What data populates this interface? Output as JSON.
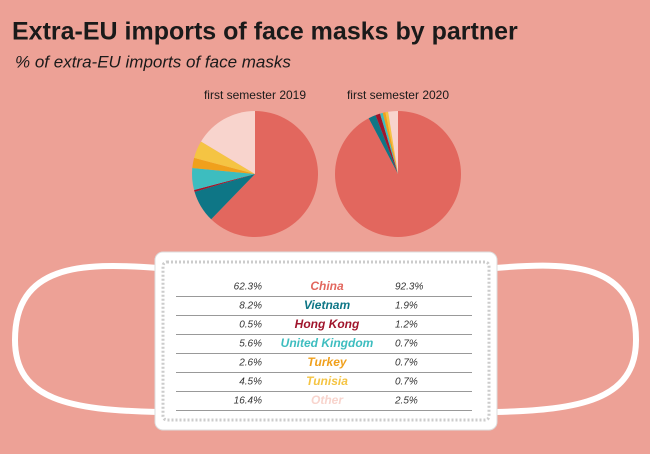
{
  "title": "Extra-EU imports of face masks by partner",
  "subtitle": "% of extra-EU imports of face masks",
  "chart_data": {
    "type": "pie",
    "categories": [
      "China",
      "Vietnam",
      "Hong Kong",
      "United Kingdom",
      "Turkey",
      "Tunisia",
      "Other"
    ],
    "colors": [
      "#e2675e",
      "#0e7686",
      "#a0152c",
      "#3dbdbf",
      "#f0a01c",
      "#f5c443",
      "#f8d4cd"
    ],
    "series": [
      {
        "name": "first semester 2019",
        "values": [
          62.3,
          8.2,
          0.5,
          5.6,
          2.6,
          4.5,
          16.4
        ],
        "value_labels": [
          "62.3%",
          "8.2%",
          "0.5%",
          "5.6%",
          "2.6%",
          "4.5%",
          "16.4%"
        ]
      },
      {
        "name": "first semester 2020",
        "values": [
          92.3,
          1.9,
          1.2,
          0.7,
          0.7,
          0.7,
          2.5
        ],
        "value_labels": [
          "92.3%",
          "1.9%",
          "1.2%",
          "0.7%",
          "0.7%",
          "0.7%",
          "2.5%"
        ]
      }
    ]
  }
}
